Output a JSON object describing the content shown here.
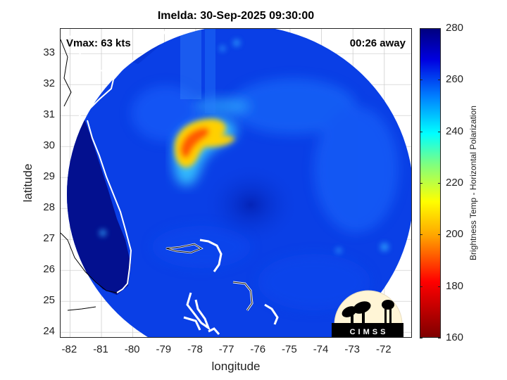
{
  "title": "Imelda: 30-Sep-2025 09:30:00",
  "vmax_label": "Vmax: 63 kts",
  "time_away_label": "00:26 away",
  "axes": {
    "xlabel": "longitude",
    "ylabel": "latitude",
    "x_ticks": [
      "-82",
      "-81",
      "-80",
      "-79",
      "-78",
      "-77",
      "-76",
      "-75",
      "-74",
      "-73",
      "-72"
    ],
    "y_ticks": [
      "33",
      "32",
      "31",
      "30",
      "29",
      "28",
      "27",
      "26",
      "25",
      "24"
    ],
    "xlim": [
      -82.3,
      -71.1
    ],
    "ylim": [
      23.8,
      33.8
    ],
    "grid": true
  },
  "colorbar": {
    "label": "Brightness Temp - Horizontal Polarization",
    "ticks": [
      "280",
      "260",
      "240",
      "220",
      "200",
      "180",
      "160"
    ],
    "range": [
      160,
      280
    ]
  },
  "logo": {
    "text": "CIMSS"
  },
  "colors": {
    "background_blue": "#0a3fe6",
    "land_blue": "#03108f",
    "rain_band_yellow": "#ffd000",
    "rain_band_red": "#ff3c00",
    "coast": "#ffffff"
  }
}
